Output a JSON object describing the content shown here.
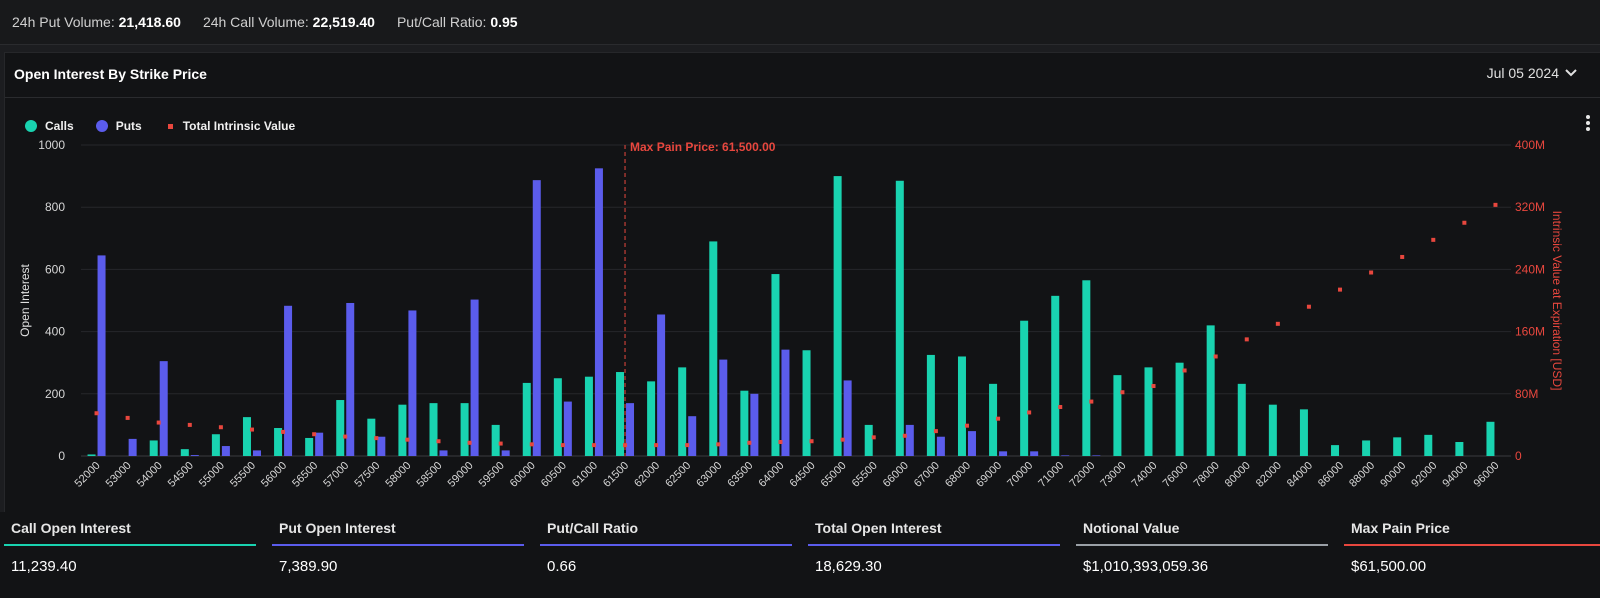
{
  "topbar": {
    "put_volume_label": "24h Put Volume:",
    "put_volume": "21,418.60",
    "call_volume_label": "24h Call Volume:",
    "call_volume": "22,519.40",
    "ratio_label": "Put/Call Ratio:",
    "ratio": "0.95"
  },
  "panel": {
    "title": "Open Interest By Strike Price",
    "date": "Jul 05 2024"
  },
  "legend": {
    "calls": "Calls",
    "puts": "Puts",
    "intrinsic": "Total Intrinsic Value"
  },
  "colors": {
    "calls": "#19d3b0",
    "puts": "#5b5cec",
    "intrinsic": "#e8473e",
    "max_pain": "#e8473e"
  },
  "chart_data": {
    "type": "bar",
    "ylabel": "Open Interest",
    "y2label": "Intrinsic Value at Expiration [USD]",
    "ylim": [
      0,
      1000
    ],
    "y2lim": [
      0,
      400
    ],
    "yticks": [
      "0",
      "200",
      "400",
      "600",
      "800",
      "1000"
    ],
    "y2ticks": [
      "0",
      "80M",
      "160M",
      "240M",
      "320M",
      "400M"
    ],
    "grid": true,
    "legend_position": "top-left",
    "categories": [
      "52000",
      "53000",
      "54000",
      "54500",
      "55000",
      "55500",
      "56000",
      "56500",
      "57000",
      "57500",
      "58000",
      "58500",
      "59000",
      "59500",
      "60000",
      "60500",
      "61000",
      "61500",
      "62000",
      "62500",
      "63000",
      "63500",
      "64000",
      "64500",
      "65000",
      "65500",
      "66000",
      "67000",
      "68000",
      "69000",
      "70000",
      "71000",
      "72000",
      "73000",
      "74000",
      "76000",
      "78000",
      "80000",
      "82000",
      "84000",
      "86000",
      "88000",
      "90000",
      "92000",
      "94000",
      "96000"
    ],
    "series": [
      {
        "name": "Calls",
        "values": [
          5,
          0,
          50,
          22,
          70,
          125,
          90,
          58,
          180,
          120,
          165,
          170,
          170,
          100,
          235,
          250,
          255,
          270,
          240,
          285,
          690,
          210,
          585,
          340,
          900,
          100,
          885,
          325,
          320,
          232,
          435,
          515,
          565,
          260,
          285,
          300,
          420,
          232,
          165,
          150,
          35,
          50,
          60,
          68,
          45,
          110
        ]
      },
      {
        "name": "Puts",
        "values": [
          645,
          55,
          305,
          3,
          32,
          18,
          483,
          75,
          492,
          62,
          468,
          18,
          503,
          18,
          887,
          175,
          925,
          170,
          455,
          128,
          310,
          200,
          342,
          0,
          243,
          0,
          100,
          62,
          80,
          15,
          15,
          2,
          2,
          0,
          0,
          0,
          0,
          0,
          0,
          0,
          0,
          0,
          0,
          0,
          0,
          0
        ]
      },
      {
        "name": "Total Intrinsic Value",
        "unit": "M USD",
        "values": [
          55,
          49,
          43,
          40,
          37,
          34,
          31,
          28,
          25,
          23,
          21,
          19,
          17,
          16,
          15,
          14,
          14,
          14,
          14,
          14,
          15,
          17,
          18,
          19,
          21,
          24,
          26,
          32,
          39,
          48,
          56,
          63,
          70,
          82,
          90,
          110,
          128,
          150,
          170,
          192,
          214,
          236,
          256,
          278,
          300,
          323
        ]
      }
    ],
    "annotations": [
      {
        "category": "61500",
        "label": "Max Pain Price: 61,500.00"
      }
    ]
  },
  "footer": [
    {
      "label": "Call Open Interest",
      "value": "11,239.40",
      "color": "#19d3b0"
    },
    {
      "label": "Put Open Interest",
      "value": "7,389.90",
      "color": "#5b5cec"
    },
    {
      "label": "Put/Call Ratio",
      "value": "0.66",
      "color": "#5b5cec"
    },
    {
      "label": "Total Open Interest",
      "value": "18,629.30",
      "color": "#5b5cec"
    },
    {
      "label": "Notional Value",
      "value": "$1,010,393,059.36",
      "color": "#9aa0a6"
    },
    {
      "label": "Max Pain Price",
      "value": "$61,500.00",
      "color": "#e8473e"
    }
  ],
  "icons": {
    "date_dropdown": "chevron-down-icon",
    "menu": "kebab-menu-icon"
  }
}
